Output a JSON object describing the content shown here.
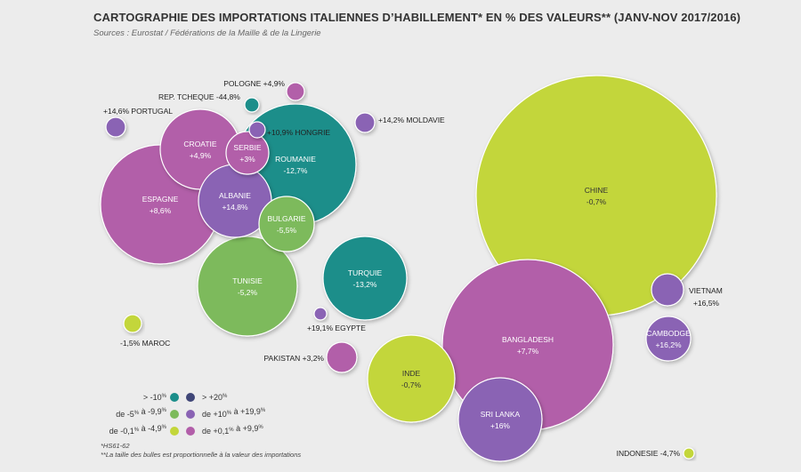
{
  "title": "CARTOGRAPHIE DES IMPORTATIONS ITALIENNES D’HABILLEMENT* EN % DES VALEURS** (JANV-NOV 2017/2016)",
  "sources": "Sources : Eurostat / Fédérations de la Maille & de la Lingerie",
  "colors": {
    "teal": "#1b8e8a",
    "navy": "#3f4677",
    "green": "#7dba5c",
    "purple": "#8a63b4",
    "lime": "#c3d63a",
    "magenta": "#b25ea9"
  },
  "chart_data": {
    "type": "bubble",
    "title": "CARTOGRAPHIE DES IMPORTATIONS ITALIENNES D’HABILLEMENT* EN % DES VALEURS** (JANV-NOV 2017/2016)",
    "series": [
      {
        "name": "CHINE",
        "value": "-0,7%",
        "change": -0.7,
        "category": "lime"
      },
      {
        "name": "BANGLADESH",
        "value": "+7,7%",
        "change": 7.7,
        "category": "magenta"
      },
      {
        "name": "ESPAGNE",
        "value": "+8,6%",
        "change": 8.6,
        "category": "magenta"
      },
      {
        "name": "ROUMANIE",
        "value": "-12,7%",
        "change": -12.7,
        "category": "teal"
      },
      {
        "name": "TUNISIE",
        "value": "-5,2%",
        "change": -5.2,
        "category": "green"
      },
      {
        "name": "INDE",
        "value": "-0,7%",
        "change": -0.7,
        "category": "lime"
      },
      {
        "name": "TURQUIE",
        "value": "-13,2%",
        "change": -13.2,
        "category": "teal"
      },
      {
        "name": "SRI LANKA",
        "value": "+16%",
        "change": 16,
        "category": "purple"
      },
      {
        "name": "CROATIE",
        "value": "+4,9%",
        "change": 4.9,
        "category": "magenta"
      },
      {
        "name": "ALBANIE",
        "value": "+14,8%",
        "change": 14.8,
        "category": "purple"
      },
      {
        "name": "BULGARIE",
        "value": "-5,5%",
        "change": -5.5,
        "category": "green"
      },
      {
        "name": "CAMBODGE",
        "value": "+16,2%",
        "change": 16.2,
        "category": "purple"
      },
      {
        "name": "SERBIE",
        "value": "+3%",
        "change": 3,
        "category": "magenta"
      },
      {
        "name": "VIETNAM",
        "value": "+16,5%",
        "change": 16.5,
        "category": "purple"
      },
      {
        "name": "PAKISTAN",
        "value": "+3,2%",
        "change": 3.2,
        "category": "magenta"
      },
      {
        "name": "PORTUGAL",
        "value": "+14,6%",
        "change": 14.6,
        "category": "purple"
      },
      {
        "name": "MOLDAVIE",
        "value": "+14,2%",
        "change": 14.2,
        "category": "purple"
      },
      {
        "name": "POLOGNE",
        "value": "+4,9%",
        "change": 4.9,
        "category": "magenta"
      },
      {
        "name": "MAROC",
        "value": "-1,5%",
        "change": -1.5,
        "category": "lime"
      },
      {
        "name": "HONGRIE",
        "value": "+10,9%",
        "change": 10.9,
        "category": "purple"
      },
      {
        "name": "REP. TCHEQUE",
        "value": "-44,8%",
        "change": -44.8,
        "category": "teal"
      },
      {
        "name": "EGYPTE",
        "value": "+19,1%",
        "change": 19.1,
        "category": "purple"
      },
      {
        "name": "INDONESIE",
        "value": "-4,7%",
        "change": -4.7,
        "category": "lime"
      }
    ],
    "labels": {
      "CHINE": "CHINE",
      "BANGLADESH": "BANGLADESH",
      "ESPAGNE": "ESPAGNE",
      "ROUMANIE": "ROUMANIE",
      "TUNISIE": "TUNISIE",
      "INDE": "INDE",
      "TURQUIE": "TURQUIE",
      "SRI LANKA": "SRI LANKA",
      "CROATIE": "CROATIE",
      "ALBANIE": "ALBANIE",
      "BULGARIE": "BULGARIE",
      "CAMBODGE": "CAMBODGE",
      "SERBIE": "SERBIE",
      "VIETNAM": "VIETNAM",
      "PAKISTAN": "PAKISTAN +3,2%",
      "PORTUGAL": "+14,6% PORTUGAL",
      "MOLDAVIE": "+14,2% MOLDAVIE",
      "POLOGNE": "POLOGNE +4,9%",
      "MAROC": "-1,5% MAROC",
      "HONGRIE": "+10,9% HONGRIE",
      "REP. TCHEQUE": "REP. TCHEQUE -44,8%",
      "EGYPTE": "+19,1% EGYPTE",
      "INDONESIE": "INDONESIE -4,7%"
    },
    "legend": [
      {
        "label": "> -10",
        "sup": "%",
        "color": "#1b8e8a"
      },
      {
        "label": "> +20",
        "sup": "%",
        "color": "#3f4677"
      },
      {
        "label": "de -5",
        "sup": "%",
        "label2": " à -9,9",
        "sup2": "%",
        "color": "#7dba5c"
      },
      {
        "label": "de +10",
        "sup": "%",
        "label2": " à +19,9",
        "sup2": "%",
        "color": "#8a63b4"
      },
      {
        "label": "de -0,1",
        "sup": "%",
        "label2": " à -4,9",
        "sup2": "%",
        "color": "#c3d63a"
      },
      {
        "label": "de +0,1",
        "sup": "%",
        "label2": " à +9,9",
        "sup2": "%",
        "color": "#b25ea9"
      }
    ],
    "footnotes": [
      "*HS61-62",
      "**La taille des bulles est proportionnelle à la valeur des importations"
    ]
  }
}
